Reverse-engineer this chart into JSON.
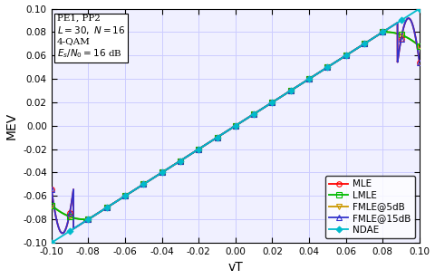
{
  "title": "",
  "xlabel": "vT",
  "ylabel": "MEV",
  "xlim": [
    -0.1,
    0.1
  ],
  "ylim": [
    -0.1,
    0.1
  ],
  "grid_color": "#ccccff",
  "bg_color": "#f0f0ff",
  "colors": {
    "MLE": "#ff0000",
    "LMLE": "#00bb00",
    "FMLE5": "#cc9900",
    "FMLE15": "#3333cc",
    "NDAE": "#00bbcc"
  },
  "annotation_lines": [
    "PE1, PP2",
    "L = 30, N = 16",
    "4-QAM",
    "E_s/N_0 = 16 dB"
  ],
  "xticks": [
    -0.1,
    -0.08,
    -0.06,
    -0.04,
    -0.02,
    0.0,
    0.02,
    0.04,
    0.06,
    0.08,
    0.1
  ],
  "yticks": [
    -0.1,
    -0.08,
    -0.06,
    -0.04,
    -0.02,
    0.0,
    0.02,
    0.04,
    0.06,
    0.08,
    0.1
  ],
  "marker_vT": [
    -0.1,
    -0.09,
    -0.08,
    -0.07,
    -0.06,
    -0.05,
    -0.04,
    -0.03,
    -0.02,
    -0.01,
    0.0,
    0.01,
    0.02,
    0.03,
    0.04,
    0.05,
    0.06,
    0.07,
    0.08,
    0.09,
    0.1
  ]
}
